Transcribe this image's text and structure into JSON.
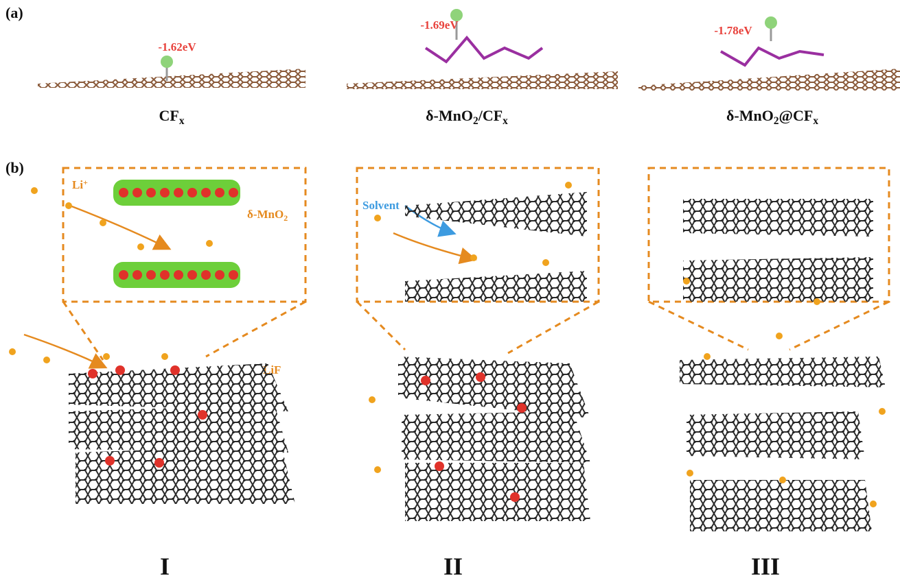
{
  "panel_a": {
    "label": "(a)",
    "structures": [
      {
        "energy": "-1.62eV",
        "name": [
          {
            "text": "CF"
          },
          {
            "text": "x",
            "style": "sub"
          }
        ]
      },
      {
        "energy": "-1.69eV",
        "name": [
          {
            "text": "δ-MnO"
          },
          {
            "text": "2",
            "style": "sub"
          },
          {
            "text": "/CF"
          },
          {
            "text": "x",
            "style": "sub"
          }
        ]
      },
      {
        "energy": "-1.78eV",
        "name": [
          {
            "text": "δ-MnO"
          },
          {
            "text": "2",
            "style": "sub"
          },
          {
            "text": "@CF"
          },
          {
            "text": "x",
            "style": "sub"
          }
        ]
      }
    ]
  },
  "panel_b": {
    "label": "(b)",
    "annotations": {
      "li_ion": [
        {
          "text": "Li"
        },
        {
          "text": "+",
          "style": "sup"
        }
      ],
      "mno2": [
        {
          "text": "δ-MnO"
        },
        {
          "text": "2",
          "style": "sub"
        }
      ],
      "solvent": "Solvent",
      "lif": "LiF"
    },
    "stages": [
      "I",
      "II",
      "III"
    ]
  }
}
